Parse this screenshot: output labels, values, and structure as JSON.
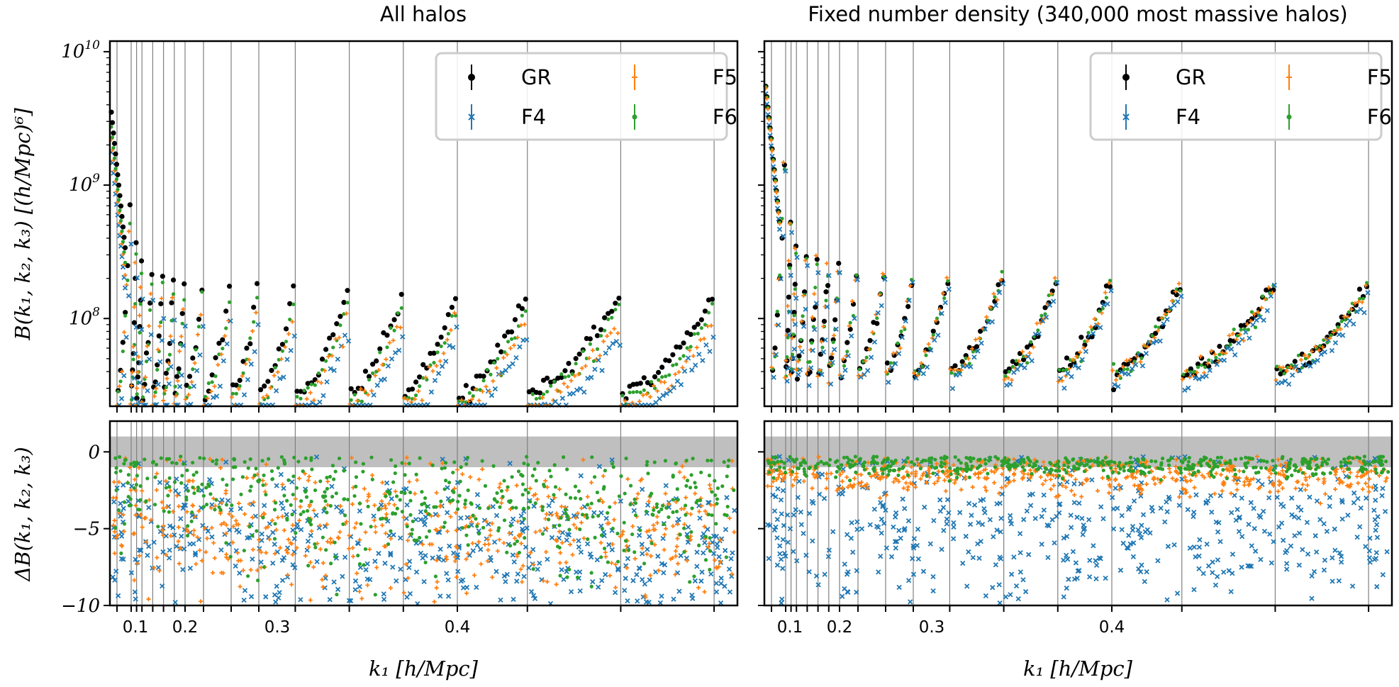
{
  "chart_data": [
    {
      "panel": "left",
      "title": "All halos",
      "type": "scatter",
      "upper": {
        "ylabel": "B(k1, k2, k3) [(h/Mpc)^6]",
        "yscale": "log",
        "ylim": [
          22000000,
          12000000000
        ],
        "yticks": [
          "10^8",
          "10^9",
          "10^10"
        ],
        "amplitude": {
          "GR": 2.0,
          "F4": 1.0,
          "F5": 1.25,
          "F6": 1.55
        },
        "low_envelope": {
          "GR": 28000000,
          "F4": 18000000,
          "F5": 22000000,
          "F6": 25000000
        },
        "peak_values": [
          1100000000,
          600000000,
          420000000,
          345000000,
          305000000,
          280000000,
          255000000,
          232000000,
          212000000,
          200000000,
          188000000,
          178000000,
          170000000,
          165000000,
          160000000,
          155000000,
          150000000
        ]
      },
      "lower": {
        "ylabel": "ΔB(k1, k2, k3)",
        "ylim": [
          -10,
          2
        ],
        "yticks": [
          "0",
          "−5",
          "−10"
        ],
        "shaded_band": [
          -1,
          1
        ],
        "scatter_mean": {
          "F4": -7.0,
          "F5": -5.5,
          "F6": -3.5
        },
        "scatter_spread": {
          "F4": 2.5,
          "F5": 2.2,
          "F6": 2.0
        }
      },
      "xlabel": "k1 [h/Mpc]",
      "xticks": [
        "0.1",
        "0.2",
        "0.3",
        "0.4"
      ],
      "xtick_values": [
        0.1,
        0.2,
        0.3,
        0.4
      ],
      "block_boundaries_k": [
        0.09,
        0.1,
        0.11,
        0.12,
        0.14,
        0.16,
        0.18,
        0.2,
        0.22,
        0.25,
        0.28,
        0.31,
        0.34,
        0.37,
        0.4,
        0.43,
        0.47,
        0.51
      ]
    },
    {
      "panel": "right",
      "title": "Fixed number density (340,000 most massive halos)",
      "type": "scatter",
      "upper": {
        "ylabel": "",
        "yscale": "log",
        "ylim": [
          22000000,
          12000000000
        ],
        "amplitude": {
          "GR": 1.0,
          "F4": 0.88,
          "F5": 0.97,
          "F6": 0.99
        },
        "low_envelope": {
          "GR": 40000000,
          "F4": 35000000,
          "F5": 38000000,
          "F6": 39000000
        },
        "peak_values": [
          5000000000,
          1500000000,
          950000000,
          780000000,
          700000000,
          640000000,
          600000000,
          560000000,
          520000000,
          490000000,
          460000000,
          440000000,
          420000000,
          400000000,
          380000000,
          370000000,
          360000000
        ]
      },
      "lower": {
        "ylabel": "",
        "ylim": [
          -10,
          2
        ],
        "shaded_band": [
          -1,
          1
        ],
        "scatter_mean": {
          "F4": -5.0,
          "F5": -1.5,
          "F6": -0.8
        },
        "scatter_spread": {
          "F4": 2.5,
          "F5": 0.6,
          "F6": 0.4
        }
      },
      "xlabel": "k1 [h/Mpc]",
      "xticks": [
        "0.1",
        "0.2",
        "0.3",
        "0.4"
      ],
      "xtick_values": [
        0.1,
        0.2,
        0.3,
        0.4
      ],
      "block_boundaries_k": [
        0.09,
        0.1,
        0.11,
        0.12,
        0.14,
        0.16,
        0.18,
        0.2,
        0.22,
        0.25,
        0.28,
        0.31,
        0.34,
        0.37,
        0.4,
        0.43,
        0.47,
        0.51
      ]
    }
  ],
  "legend": {
    "placement": "top-right",
    "entries": [
      {
        "name": "GR",
        "color": "#000000",
        "marker": "dot"
      },
      {
        "name": "F5",
        "color": "#ff7f0e",
        "marker": "plus"
      },
      {
        "name": "F4",
        "color": "#1f77b4",
        "marker": "x"
      },
      {
        "name": "F6",
        "color": "#2ca02c",
        "marker": "dot"
      }
    ]
  },
  "colors": {
    "GR": "#000000",
    "F4": "#1f77b4",
    "F5": "#ff7f0e",
    "F6": "#2ca02c",
    "band": "#bfbfbf",
    "gridline": "#808080"
  }
}
